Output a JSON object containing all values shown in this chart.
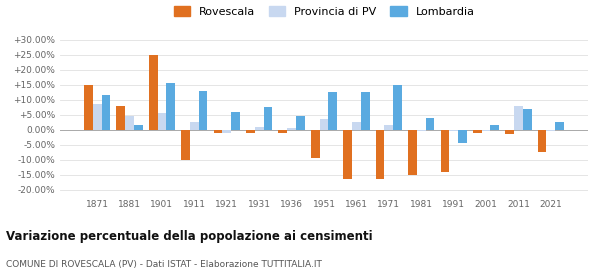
{
  "years": [
    1871,
    1881,
    1901,
    1911,
    1921,
    1931,
    1936,
    1951,
    1961,
    1971,
    1981,
    1991,
    2001,
    2011,
    2021
  ],
  "rovescala": [
    15.0,
    7.8,
    25.0,
    -10.0,
    -1.0,
    -1.0,
    -1.0,
    -9.5,
    -16.5,
    -16.5,
    -15.0,
    -14.0,
    -1.0,
    -1.5,
    -7.5
  ],
  "provincia_pv": [
    8.5,
    4.5,
    5.5,
    2.5,
    -1.0,
    1.0,
    0.5,
    3.5,
    2.5,
    1.5,
    -0.5,
    -0.5,
    -0.5,
    8.0,
    -0.5
  ],
  "lombardia": [
    11.5,
    1.5,
    15.5,
    13.0,
    6.0,
    7.5,
    4.5,
    12.5,
    12.5,
    15.0,
    4.0,
    -4.5,
    1.5,
    7.0,
    2.5
  ],
  "color_rovescala": "#e07020",
  "color_provincia": "#c8d8f0",
  "color_lombardia": "#5aaae0",
  "title": "Variazione percentuale della popolazione ai censimenti",
  "subtitle": "COMUNE DI ROVESCALA (PV) - Dati ISTAT - Elaborazione TUTTITALIA.IT",
  "legend_rovescala": "Rovescala",
  "legend_provincia": "Provincia di PV",
  "legend_lombardia": "Lombardia",
  "yticks": [
    -20,
    -15,
    -10,
    -5,
    0,
    5,
    10,
    15,
    20,
    25,
    30
  ],
  "ylim": [
    -22,
    32
  ],
  "bar_width": 0.27
}
